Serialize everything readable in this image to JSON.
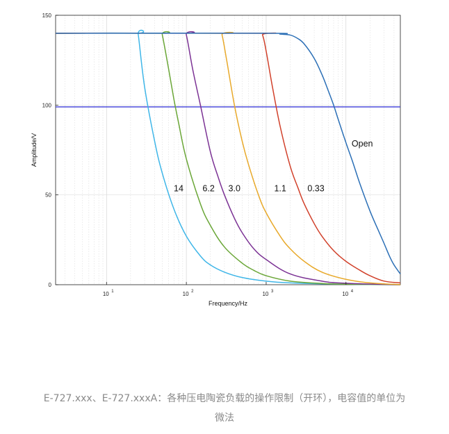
{
  "chart_data": {
    "type": "line",
    "xscale": "log",
    "xlim": [
      2.3,
      48000
    ],
    "ylim": [
      0,
      150
    ],
    "xlabel": "Frequency/Hz",
    "ylabel": "Amplitude/V",
    "yticks": [
      0,
      50,
      100,
      150
    ],
    "ytick_labels": [
      "0",
      "50",
      "100",
      "150"
    ],
    "xticks": [
      10,
      100,
      1000,
      10000
    ],
    "xtick_labels": [
      {
        "base": "10",
        "exp": "1"
      },
      {
        "base": "10",
        "exp": "2"
      },
      {
        "base": "10",
        "exp": "3"
      },
      {
        "base": "10",
        "exp": "4"
      }
    ],
    "grid": true,
    "reference_line": {
      "y": 99,
      "color": "#3a3ad8"
    },
    "series": [
      {
        "name": "14",
        "color": "#3fb6e8",
        "x": [
          2.3,
          24,
          25,
          30,
          40,
          50,
          70,
          100,
          150,
          200,
          300,
          500,
          1000,
          2000,
          5000,
          10000,
          20000,
          48000
        ],
        "y": [
          140,
          140,
          139,
          110,
          80,
          62,
          42,
          27,
          16,
          11,
          7,
          4,
          2,
          1,
          0.5,
          0.3,
          0.1,
          0
        ]
      },
      {
        "name": "6.2",
        "color": "#6aa637",
        "x": [
          2.3,
          48,
          50,
          60,
          70,
          80,
          100,
          150,
          200,
          300,
          500,
          700,
          1000,
          2000,
          5000,
          10000,
          48000
        ],
        "y": [
          140,
          140,
          139,
          120,
          103,
          90,
          70,
          45,
          33,
          21,
          12,
          8,
          5,
          2,
          0.7,
          0.3,
          0
        ]
      },
      {
        "name": "3.0",
        "color": "#7b3294",
        "x": [
          2.3,
          92,
          100,
          120,
          150,
          200,
          250,
          300,
          400,
          500,
          700,
          1000,
          2000,
          5000,
          10000,
          48000
        ],
        "y": [
          140,
          140,
          139,
          120,
          100,
          74,
          60,
          50,
          37,
          29,
          20,
          14,
          6,
          2,
          0.8,
          0
        ]
      },
      {
        "name": "1.1",
        "color": "#e8a92a",
        "x": [
          2.3,
          260,
          280,
          320,
          400,
          500,
          600,
          800,
          1000,
          1500,
          2000,
          3000,
          5000,
          10000,
          20000,
          48000
        ],
        "y": [
          140,
          140,
          139,
          125,
          100,
          80,
          67,
          50,
          40,
          27,
          20,
          13,
          7,
          3,
          1,
          0
        ]
      },
      {
        "name": "0.33",
        "color": "#d1402a",
        "x": [
          2.3,
          800,
          900,
          1000,
          1200,
          1500,
          2000,
          2500,
          3000,
          4000,
          5000,
          7000,
          10000,
          15000,
          20000,
          30000,
          48000
        ],
        "y": [
          140,
          140,
          139,
          130,
          110,
          88,
          66,
          54,
          45,
          34,
          27,
          19,
          13,
          8,
          5,
          2,
          1
        ]
      },
      {
        "name": "Open",
        "color": "#2b6fb6",
        "x": [
          2.3,
          1000,
          1500,
          2000,
          2500,
          3000,
          4000,
          5000,
          6000,
          7000,
          8000,
          10000,
          12000,
          15000,
          20000,
          25000,
          30000,
          35000,
          40000,
          48000
        ],
        "y": [
          140,
          140,
          139.5,
          139,
          137,
          134,
          126,
          117,
          108,
          100,
          92,
          79,
          69,
          56,
          41,
          31,
          23,
          16,
          11,
          6
        ]
      }
    ],
    "series_labels": [
      {
        "name": "14",
        "x": 80,
        "y": 52
      },
      {
        "name": "6.2",
        "x": 190,
        "y": 52
      },
      {
        "name": "3.0",
        "x": 400,
        "y": 52
      },
      {
        "name": "1.1",
        "x": 1500,
        "y": 52
      },
      {
        "name": "0.33",
        "x": 4200,
        "y": 52
      },
      {
        "name": "Open",
        "x": 16000,
        "y": 77
      }
    ]
  },
  "caption": {
    "line1": "E-727.xxx、E-727.xxxA：各种压电陶瓷负载的操作限制（开环），电容值的单位为",
    "line2": "微法"
  }
}
